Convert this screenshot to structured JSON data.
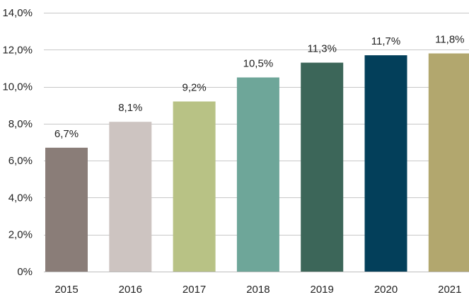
{
  "chart_data": {
    "type": "bar",
    "title": "",
    "xlabel": "",
    "ylabel": "",
    "categories": [
      "2015",
      "2016",
      "2017",
      "2018",
      "2019",
      "2020",
      "2021"
    ],
    "values": [
      6.7,
      8.1,
      9.2,
      10.5,
      11.3,
      11.7,
      11.8
    ],
    "value_labels": [
      "6,7%",
      "8,1%",
      "9,2%",
      "10,5%",
      "11,3%",
      "11,7%",
      "11,8%"
    ],
    "ylim": [
      0,
      14
    ],
    "yticks": [
      0,
      2,
      4,
      6,
      8,
      10,
      12,
      14
    ],
    "ytick_labels": [
      "0%",
      "2,0%",
      "4,0%",
      "6,0%",
      "8,0%",
      "10,0%",
      "12,0%",
      "14,0%"
    ],
    "grid": true,
    "legend": "none",
    "colors": [
      "#8a7d78",
      "#cdc4c1",
      "#b8c285",
      "#6ea699",
      "#3c6659",
      "#033f5a",
      "#b2a76e"
    ]
  }
}
